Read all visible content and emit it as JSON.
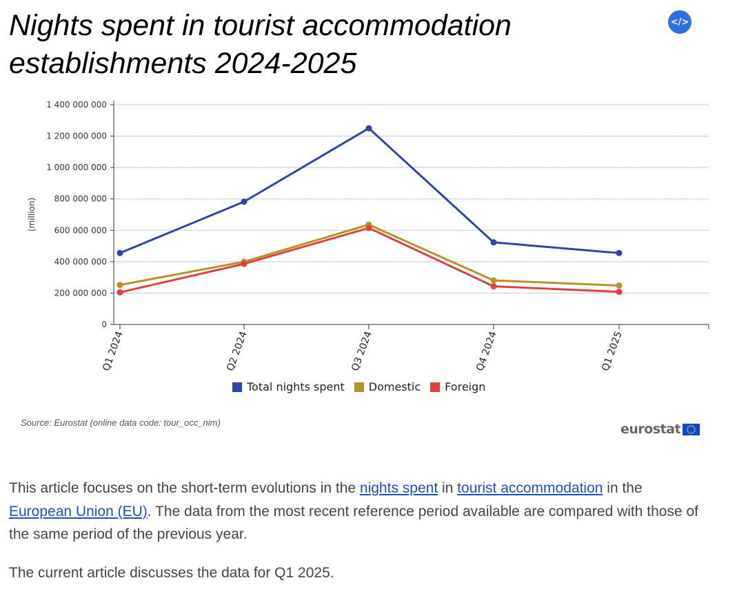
{
  "title": "Nights spent in tourist accommodation establishments 2024-2025",
  "embed_button": {
    "label": "</>",
    "icon": "code-icon"
  },
  "chart_data": {
    "type": "line",
    "categories": [
      "Q1 2024",
      "Q2 2024",
      "Q3 2024",
      "Q4 2024",
      "Q1 2025"
    ],
    "series": [
      {
        "name": "Total nights spent",
        "color": "#2c45a8",
        "values": [
          455000000,
          782000000,
          1250000000,
          523000000,
          455000000
        ]
      },
      {
        "name": "Domestic",
        "color": "#b5932a",
        "values": [
          252000000,
          400000000,
          636000000,
          281000000,
          248000000
        ]
      },
      {
        "name": "Foreign",
        "color": "#e04040",
        "values": [
          205000000,
          386000000,
          615000000,
          243000000,
          208000000
        ]
      }
    ],
    "ylabel": "(million)",
    "ylim": [
      0,
      1400000000
    ],
    "yticks": [
      0,
      200000000,
      400000000,
      600000000,
      800000000,
      1000000000,
      1200000000,
      1400000000
    ],
    "ytick_labels": [
      "0",
      "200 000 000",
      "400 000 000",
      "600 000 000",
      "800 000 000",
      "1 000 000 000",
      "1 200 000 000",
      "1 400 000 000"
    ],
    "grid": true,
    "legend_position": "bottom"
  },
  "source": "Source: Eurostat (online data code: tour_occ_nim)",
  "logo": {
    "text": "eurostat",
    "flag_icon": "eu-flag-icon"
  },
  "article": {
    "p1_a": "This article focuses on the short-term evolutions in the ",
    "link1": "nights spent",
    "p1_b": " in ",
    "link2": "tourist accommodation",
    "p1_c": " in the ",
    "link3": "European Union (EU)",
    "p1_d": ". The data from the most recent reference period available are compared with those of the same period of the previous year.",
    "p2": "The current article discusses the data for Q1 2025."
  }
}
